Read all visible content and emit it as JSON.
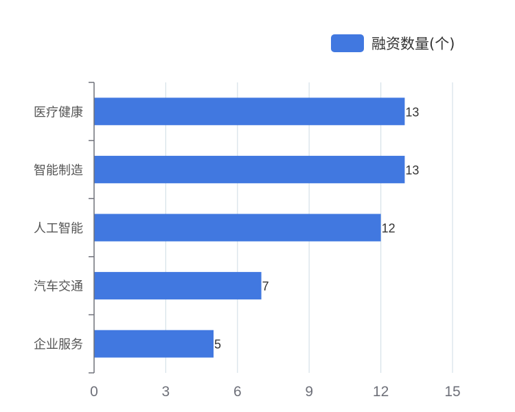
{
  "chart_data": {
    "type": "bar",
    "orientation": "horizontal",
    "categories": [
      "医疗健康",
      "智能制造",
      "人工智能",
      "汽车交通",
      "企业服务"
    ],
    "series": [
      {
        "name": "融资数量(个)",
        "values": [
          13,
          13,
          12,
          7,
          5
        ],
        "color": "#4178e0"
      }
    ],
    "xlim": [
      0,
      15
    ],
    "xticks": [
      0,
      3,
      6,
      9,
      12,
      15
    ],
    "grid": true,
    "legend_position": "top-right",
    "data_labels": true
  }
}
